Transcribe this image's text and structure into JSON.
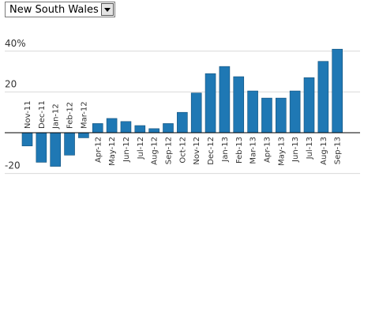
{
  "region_select": {
    "selected": "New South Wales"
  },
  "colors": {
    "bar": "#1f78b4",
    "bar_edge": "#13507a",
    "grid": "#d9d9d9",
    "axis": "#000000"
  },
  "chart_data": {
    "type": "bar",
    "categories": [
      "Nov-11",
      "Dec-11",
      "Jan-12",
      "Feb-12",
      "Mar-12",
      "Apr-12",
      "May-12",
      "Jun-12",
      "Jul-12",
      "Aug-12",
      "Sep-12",
      "Oct-12",
      "Nov-12",
      "Dec-12",
      "Jan-13",
      "Feb-13",
      "Mar-13",
      "Apr-13",
      "May-13",
      "Jun-13",
      "Jul-13",
      "Aug-13",
      "Sep-13"
    ],
    "values": [
      -6.5,
      -14.5,
      -16.5,
      -11,
      -2.5,
      4.5,
      7,
      5.5,
      3.5,
      2,
      4.5,
      10,
      19.5,
      29,
      32.5,
      27.5,
      20.5,
      17,
      17,
      20.5,
      27,
      35,
      41
    ],
    "y_ticks": [
      {
        "value": 40,
        "label": "40%"
      },
      {
        "value": 20,
        "label": "20"
      },
      {
        "value": -20,
        "label": "-20"
      }
    ],
    "ylim": [
      -20,
      40
    ],
    "grid": true
  }
}
